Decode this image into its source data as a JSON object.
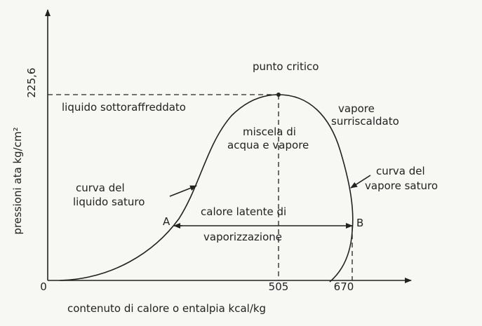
{
  "axes": {
    "y_label": "pressioni ata kg/cm²",
    "x_label": "contenuto di calore o entalpia kcal/kg",
    "origin": "0",
    "y_tick": "225,6",
    "x_ticks": [
      "505",
      "670"
    ]
  },
  "labels": {
    "critical_point": "punto critico",
    "subcooled": "liquido sottoraffreddato",
    "superheated": [
      "vapore",
      "surriscaldato"
    ],
    "mixture": [
      "miscela di",
      "acqua e vapore"
    ],
    "saturated_vapor_curve": [
      "curva del",
      "vapore saturo"
    ],
    "saturated_liquid_curve": [
      "curva del",
      "liquido saturo"
    ],
    "latent_heat": [
      "calore latente di",
      "vaporizzazione"
    ],
    "point_a": "A",
    "point_b": "B"
  }
}
